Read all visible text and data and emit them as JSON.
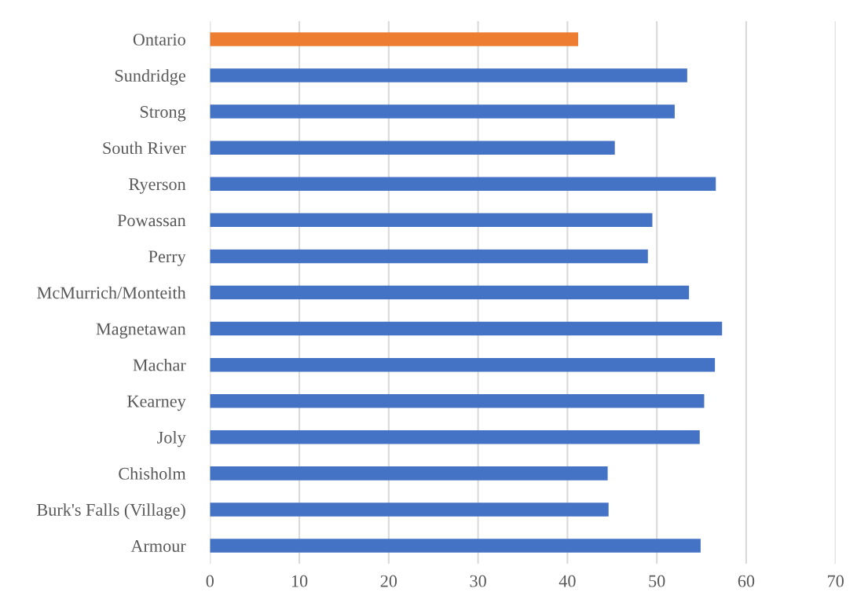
{
  "chart_data": {
    "type": "bar",
    "orientation": "horizontal",
    "categories": [
      "Ontario",
      "Sundridge",
      "Strong",
      "South River",
      "Ryerson",
      "Powassan",
      "Perry",
      "McMurrich/Monteith",
      "Magnetawan",
      "Machar",
      "Kearney",
      "Joly",
      "Chisholm",
      "Burk's Falls (Village)",
      "Armour"
    ],
    "values": [
      41.2,
      53.4,
      52.0,
      45.3,
      56.6,
      49.5,
      49.0,
      53.6,
      57.3,
      56.5,
      55.3,
      54.8,
      44.5,
      44.6,
      54.9
    ],
    "colors": [
      "#ed7d31",
      "#4472c4",
      "#4472c4",
      "#4472c4",
      "#4472c4",
      "#4472c4",
      "#4472c4",
      "#4472c4",
      "#4472c4",
      "#4472c4",
      "#4472c4",
      "#4472c4",
      "#4472c4",
      "#4472c4",
      "#4472c4"
    ],
    "xlim": [
      0,
      70
    ],
    "xticks": [
      0,
      10,
      20,
      30,
      40,
      50,
      60,
      70
    ],
    "grid": "x",
    "legend": false
  }
}
